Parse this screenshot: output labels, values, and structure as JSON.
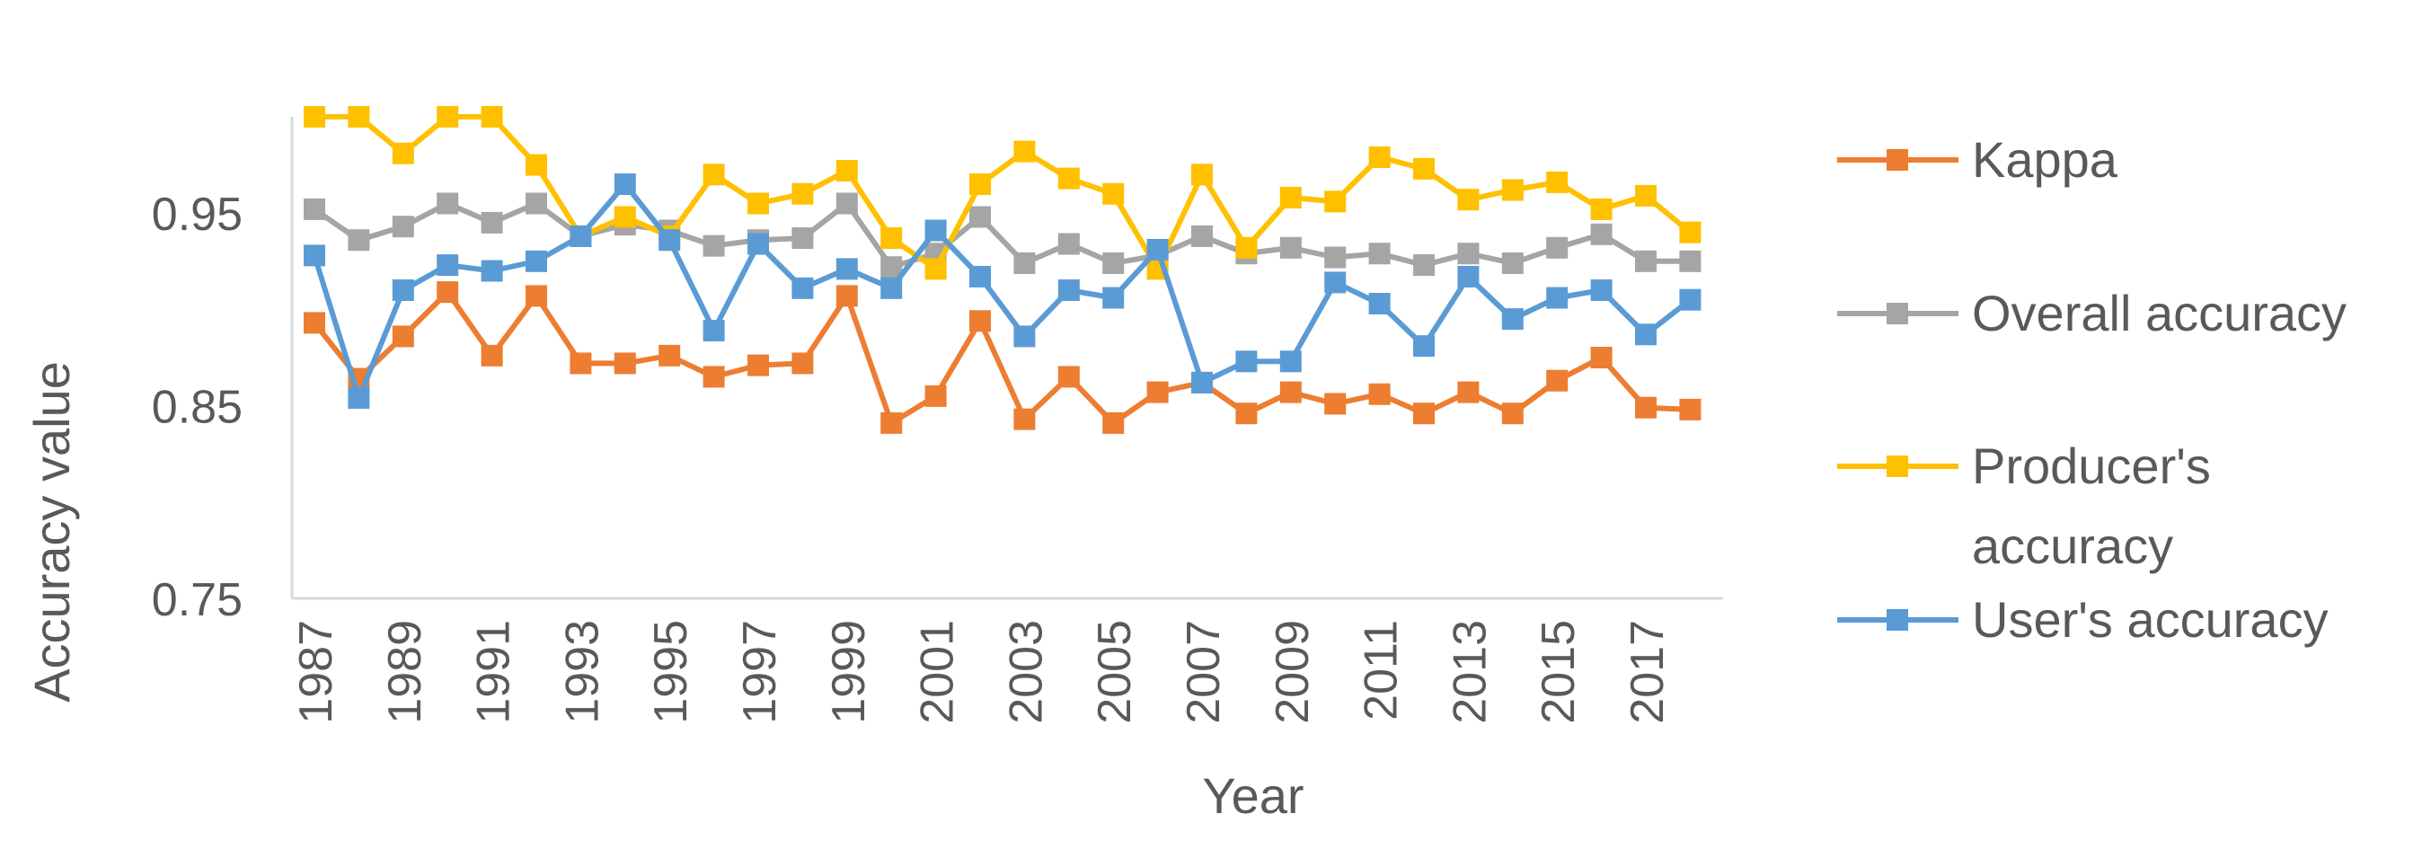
{
  "chart_data": {
    "type": "line",
    "xlabel": "Year",
    "ylabel": "Accuracy value",
    "ylim": [
      0.75,
      1.0
    ],
    "yticks": [
      "0.75",
      "0.85",
      "0.95"
    ],
    "ytick_values": [
      0.75,
      0.85,
      0.95
    ],
    "xtick_labels": [
      "1987",
      "1989",
      "1991",
      "1993",
      "1995",
      "1997",
      "1999",
      "2001",
      "2003",
      "2005",
      "2007",
      "2009",
      "2011",
      "2013",
      "2015",
      "2017"
    ],
    "x": [
      1987,
      1988,
      1989,
      1990,
      1991,
      1992,
      1993,
      1994,
      1995,
      1996,
      1997,
      1998,
      1999,
      2000,
      2001,
      2002,
      2003,
      2004,
      2005,
      2006,
      2007,
      2008,
      2009,
      2010,
      2011,
      2012,
      2013,
      2014,
      2015,
      2016,
      2017,
      2018
    ],
    "grid": false,
    "legend_position": "right",
    "series": [
      {
        "name": "Kappa",
        "color": "#ED7D31",
        "values": [
          0.893,
          0.864,
          0.886,
          0.909,
          0.876,
          0.907,
          0.872,
          0.872,
          0.876,
          0.865,
          0.871,
          0.872,
          0.907,
          0.841,
          0.855,
          0.894,
          0.843,
          0.865,
          0.841,
          0.857,
          0.862,
          0.846,
          0.857,
          0.851,
          0.856,
          0.846,
          0.857,
          0.846,
          0.863,
          0.875,
          0.849,
          0.848
        ]
      },
      {
        "name": "Overall accuracy",
        "color": "#A5A5A5",
        "values": [
          0.952,
          0.936,
          0.943,
          0.955,
          0.945,
          0.955,
          0.938,
          0.944,
          0.941,
          0.933,
          0.936,
          0.937,
          0.955,
          0.922,
          0.929,
          0.948,
          0.924,
          0.934,
          0.924,
          0.928,
          0.938,
          0.929,
          0.932,
          0.927,
          0.929,
          0.923,
          0.929,
          0.924,
          0.932,
          0.939,
          0.925,
          0.925
        ]
      },
      {
        "name": "Producer's accuracy",
        "color": "#FFC000",
        "values": [
          1.0,
          1.0,
          0.981,
          1.0,
          1.0,
          0.975,
          0.938,
          0.948,
          0.938,
          0.97,
          0.955,
          0.96,
          0.972,
          0.937,
          0.921,
          0.965,
          0.982,
          0.968,
          0.96,
          0.921,
          0.97,
          0.932,
          0.958,
          0.956,
          0.979,
          0.973,
          0.957,
          0.962,
          0.966,
          0.952,
          0.959,
          0.94
        ]
      },
      {
        "name": "User's accuracy",
        "color": "#5B9BD5",
        "values": [
          0.928,
          0.854,
          0.91,
          0.923,
          0.92,
          0.925,
          0.938,
          0.965,
          0.936,
          0.889,
          0.934,
          0.911,
          0.921,
          0.911,
          0.941,
          0.917,
          0.886,
          0.91,
          0.906,
          0.931,
          0.862,
          0.873,
          0.873,
          0.914,
          0.903,
          0.881,
          0.917,
          0.895,
          0.906,
          0.91,
          0.887,
          0.905
        ]
      }
    ]
  }
}
